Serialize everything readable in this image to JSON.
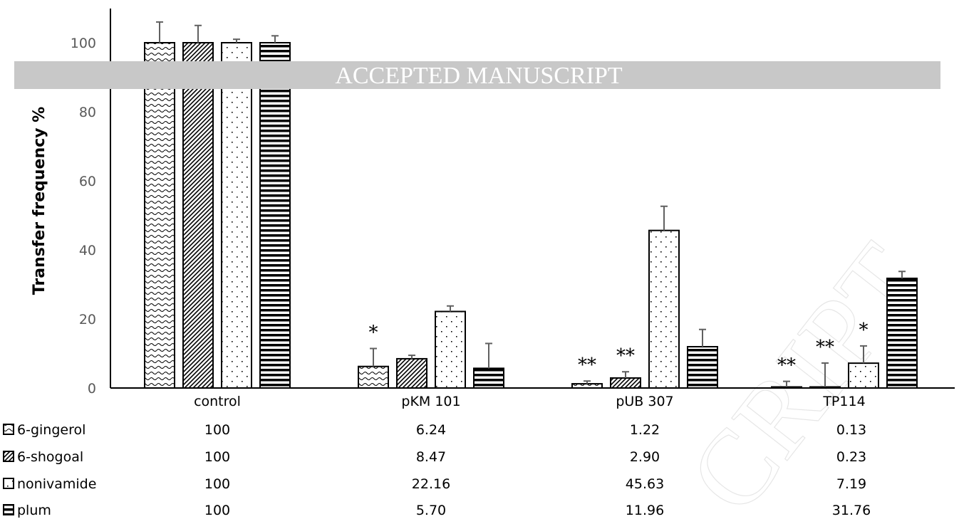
{
  "colors": {
    "banner": "#c8c8c8",
    "axis": "#000000",
    "bar_stroke": "#000000",
    "error_bar": "#606060"
  },
  "banner": {
    "text": "ACCEPTED MANUSCRIPT"
  },
  "watermark": {
    "text": "CRIPT"
  },
  "chart_data": {
    "type": "bar",
    "ylabel": "Transfer frequency %",
    "xlabel": "",
    "ylim": [
      0,
      110
    ],
    "yticks": [
      "0",
      "20",
      "40",
      "60",
      "80",
      "100"
    ],
    "grid": false,
    "categories": [
      "control",
      "pKM 101",
      "pUB 307",
      "TP114"
    ],
    "series": [
      {
        "name": "6-gingerol",
        "pattern": "wave",
        "values": [
          100,
          6.24,
          1.22,
          0.13
        ],
        "errors": [
          6,
          5.2,
          0.8,
          1.8
        ],
        "labels": [
          "100",
          "6.24",
          "1.22",
          "0.13"
        ],
        "sig": [
          "",
          "*",
          "**",
          "**"
        ]
      },
      {
        "name": "6-shogoal",
        "pattern": "diag",
        "values": [
          100,
          8.47,
          2.9,
          0.23
        ],
        "errors": [
          5,
          1.0,
          1.8,
          7.0
        ],
        "labels": [
          "100",
          "8.47",
          "2.90",
          "0.23"
        ],
        "sig": [
          "",
          "",
          "**",
          "**"
        ]
      },
      {
        "name": "nonivamide",
        "pattern": "dots",
        "values": [
          100,
          22.16,
          45.63,
          7.19
        ],
        "errors": [
          1,
          1.6,
          7.0,
          5.0
        ],
        "labels": [
          "100",
          "22.16",
          "45.63",
          "7.19"
        ],
        "sig": [
          "",
          "",
          "",
          "*"
        ]
      },
      {
        "name": "plum",
        "pattern": "hlines",
        "values": [
          100,
          5.7,
          11.96,
          31.76
        ],
        "errors": [
          2,
          7.2,
          5.0,
          2.0
        ],
        "labels": [
          "100",
          "5.70",
          "11.96",
          "31.76"
        ],
        "sig": [
          "",
          "",
          "",
          ""
        ]
      }
    ]
  }
}
